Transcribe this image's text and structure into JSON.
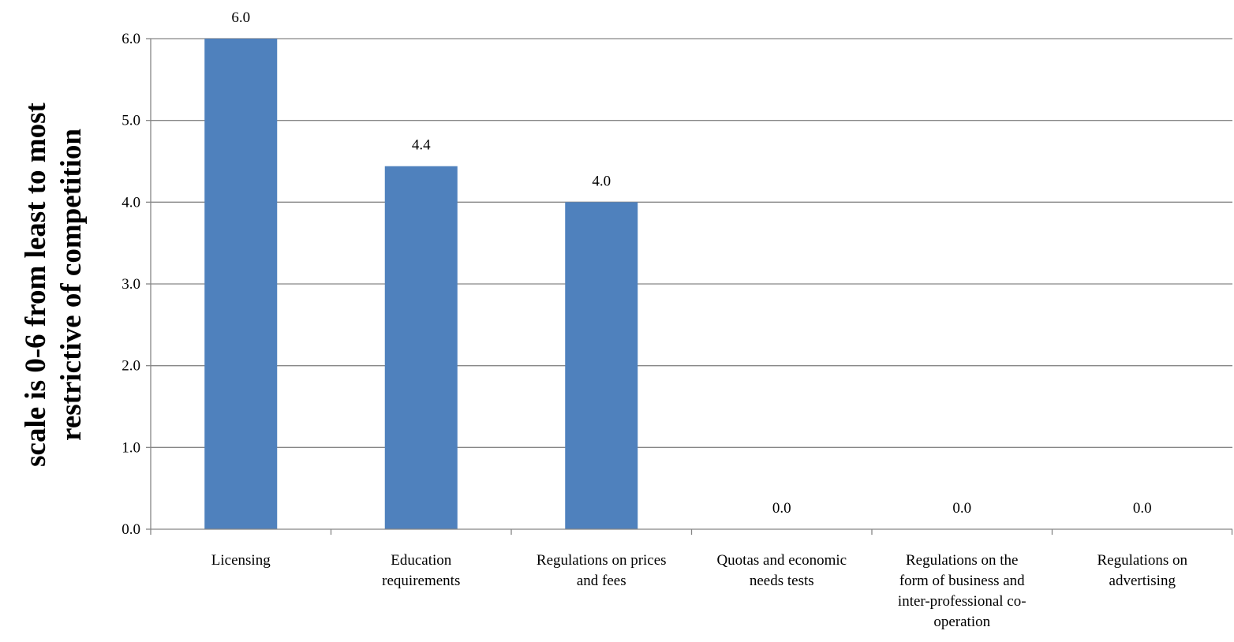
{
  "chart_data": {
    "type": "bar",
    "title": "",
    "xlabel": "",
    "ylabel_lines": [
      "scale is 0-6 from least to most",
      "restrictive of competition"
    ],
    "categories": [
      [
        "Licensing"
      ],
      [
        "Education",
        "requirements"
      ],
      [
        "Regulations on prices",
        "and fees"
      ],
      [
        "Quotas and economic",
        "needs tests"
      ],
      [
        "Regulations on the",
        "form of business and",
        "inter-professional co-",
        "operation"
      ],
      [
        "Regulations on",
        "advertising"
      ]
    ],
    "values": [
      6.0,
      4.44,
      4.0,
      0.0,
      0.0,
      0.0
    ],
    "value_labels": [
      "6.0",
      "4.4",
      "4.0",
      "0.0",
      "0.0",
      "0.0"
    ],
    "ylim": [
      0,
      6
    ],
    "yticks": [
      0,
      1,
      2,
      3,
      4,
      5,
      6
    ],
    "ytick_labels": [
      "0.0",
      "1.0",
      "2.0",
      "3.0",
      "4.0",
      "5.0",
      "6.0"
    ],
    "grid": true,
    "colors": {
      "bar": "#4F81BD",
      "grid": "#868686",
      "axis": "#868686"
    }
  }
}
